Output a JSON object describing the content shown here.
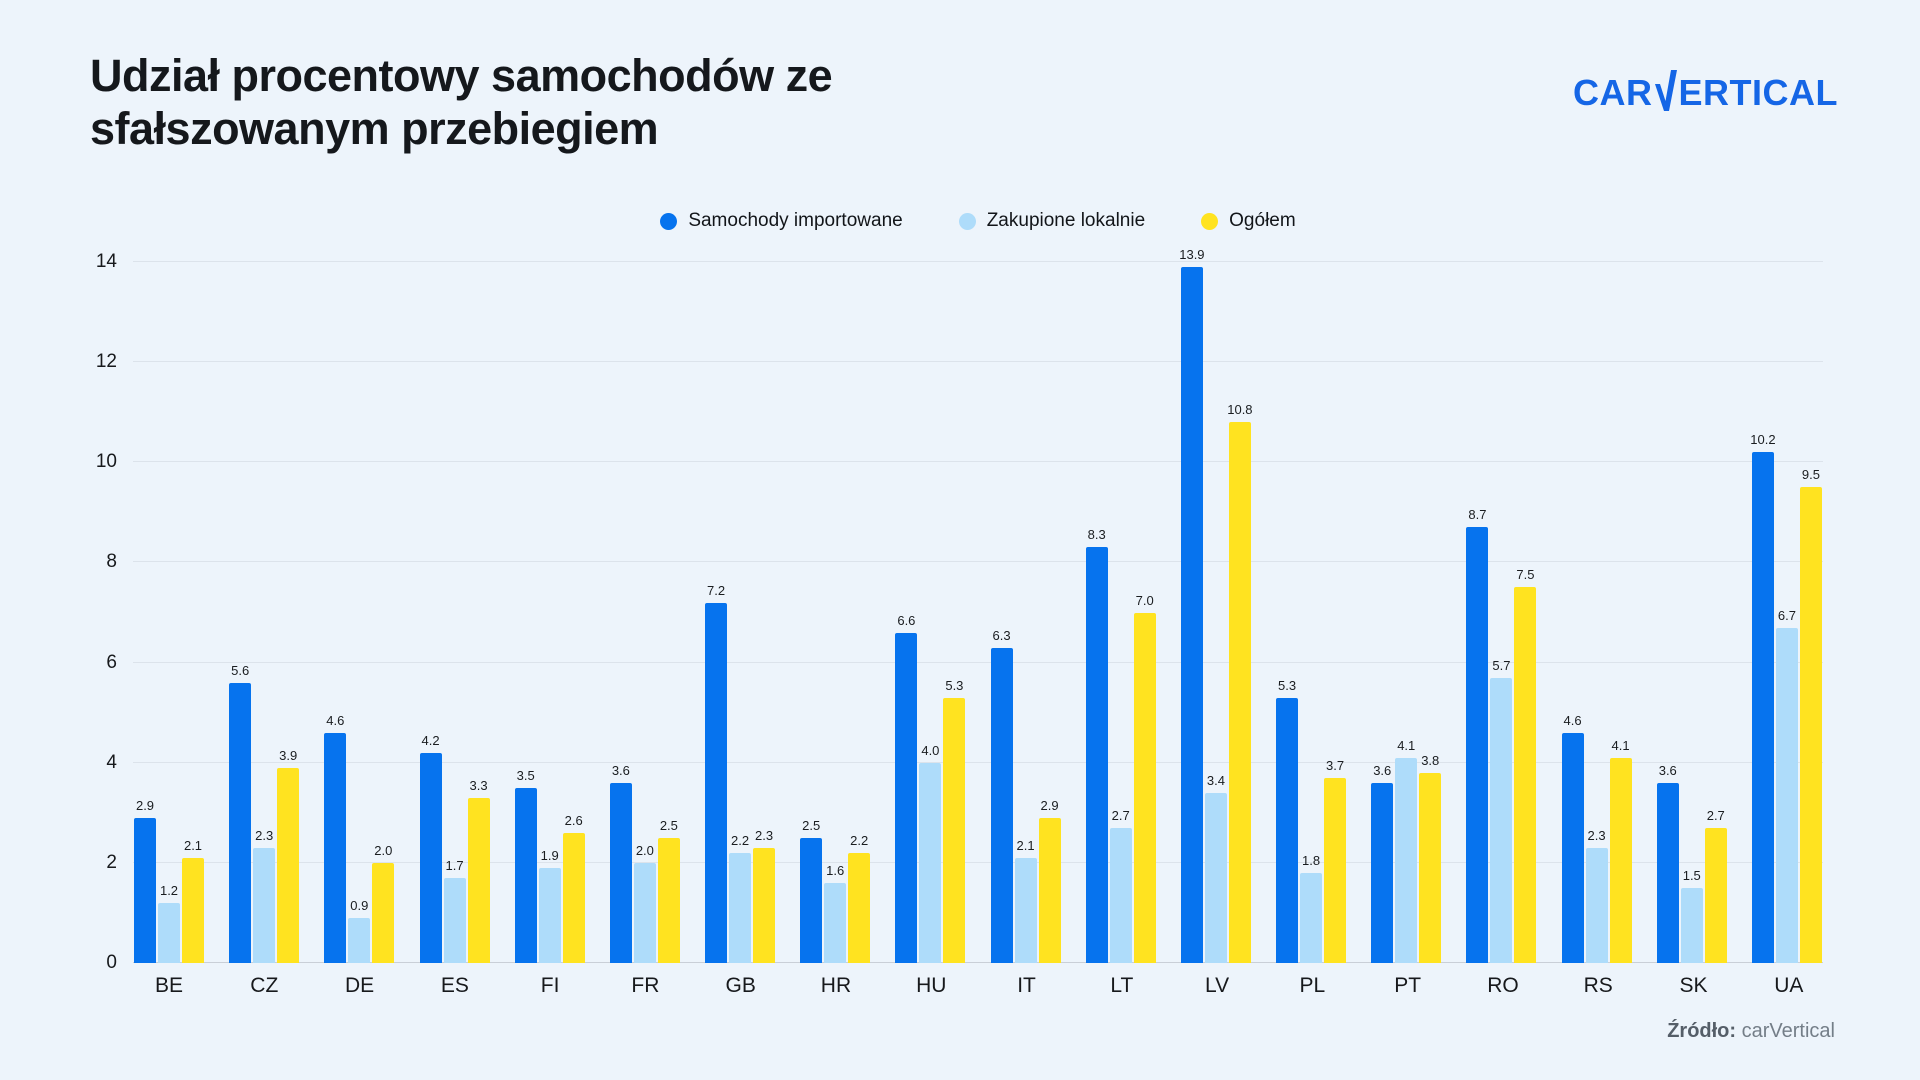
{
  "title": "Udział procentowy samochodów ze sfałszowanym przebiegiem",
  "logo": {
    "prefix": "CAR",
    "v": "V",
    "suffix": "ERTICAL",
    "color": "#1566E6"
  },
  "source": {
    "label": "Źródło:",
    "value": "carVertical"
  },
  "colors": {
    "background": "#EDF4FB",
    "imported": "#0673EE",
    "local": "#AEDCFA",
    "total": "#FFE320",
    "gridline": "#DCE3EB",
    "axis_line": "#C9CFD7",
    "text": "#15181C"
  },
  "chart_data": {
    "type": "bar",
    "title": "Udział procentowy samochodów ze sfałszowanym przebiegiem",
    "categories": [
      "BE",
      "CZ",
      "DE",
      "ES",
      "FI",
      "FR",
      "GB",
      "HR",
      "HU",
      "IT",
      "LT",
      "LV",
      "PL",
      "PT",
      "RO",
      "RS",
      "SK",
      "UA"
    ],
    "series": [
      {
        "name": "Samochody importowane",
        "color": "#0673EE",
        "values": [
          2.9,
          5.6,
          4.6,
          4.2,
          3.5,
          3.6,
          7.2,
          2.5,
          6.6,
          6.3,
          8.3,
          13.9,
          5.3,
          3.6,
          8.7,
          4.6,
          3.6,
          10.2
        ]
      },
      {
        "name": "Zakupione lokalnie",
        "color": "#AEDCFA",
        "values": [
          1.2,
          2.3,
          0.9,
          1.7,
          1.9,
          2.0,
          2.2,
          1.6,
          4.0,
          2.1,
          2.7,
          3.4,
          1.8,
          4.1,
          5.7,
          2.3,
          1.5,
          6.7
        ]
      },
      {
        "name": "Ogółem",
        "color": "#FFE320",
        "values": [
          2.1,
          3.9,
          2.0,
          3.3,
          2.6,
          2.5,
          2.3,
          2.2,
          5.3,
          2.9,
          7.0,
          10.8,
          3.7,
          3.8,
          7.5,
          4.1,
          2.7,
          9.5
        ]
      }
    ],
    "xlabel": "",
    "ylabel": "",
    "ylim": [
      0,
      14
    ],
    "yticks": [
      0,
      2,
      4,
      6,
      8,
      10,
      12,
      14
    ],
    "grid": true,
    "legend_position": "top-center",
    "value_labels": "one-decimal"
  }
}
